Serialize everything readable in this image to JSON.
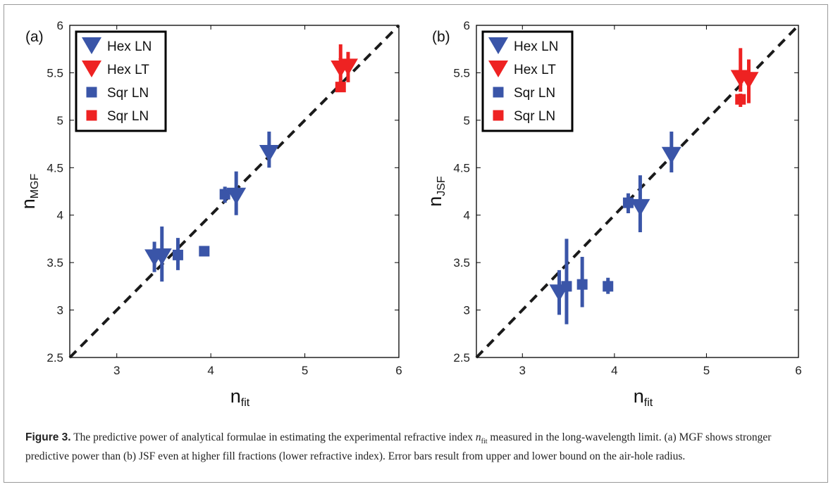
{
  "chart_data": [
    {
      "type": "scatter",
      "panel_label": "(a)",
      "xlabel": "n",
      "xlabel_sub": "fit",
      "ylabel": "n",
      "ylabel_sub": "MGF",
      "xlim": [
        2.5,
        6
      ],
      "ylim": [
        2.5,
        6
      ],
      "xticks": [
        "3",
        "4",
        "5",
        "6"
      ],
      "yticks": [
        "2.5",
        "3",
        "3.5",
        "4",
        "4.5",
        "5",
        "5.5",
        "6"
      ],
      "legend_position": "top-left",
      "reference_line": "y = x (dashed)",
      "series": [
        {
          "name": "Hex LN",
          "color": "#3a55a8",
          "marker": "triangle-down",
          "points": [
            {
              "x": 3.4,
              "y": 3.55,
              "ylo": 3.4,
              "yhi": 3.72
            },
            {
              "x": 3.48,
              "y": 3.56,
              "ylo": 3.3,
              "yhi": 3.88
            },
            {
              "x": 4.27,
              "y": 4.2,
              "ylo": 4.0,
              "yhi": 4.46
            },
            {
              "x": 4.62,
              "y": 4.65,
              "ylo": 4.5,
              "yhi": 4.88
            }
          ]
        },
        {
          "name": "Hex LT",
          "color": "#ee2222",
          "marker": "triangle-down",
          "points": [
            {
              "x": 5.38,
              "y": 5.54,
              "ylo": 5.42,
              "yhi": 5.8
            },
            {
              "x": 5.46,
              "y": 5.56,
              "ylo": 5.4,
              "yhi": 5.72
            }
          ]
        },
        {
          "name": "Sqr LN",
          "color": "#3a55a8",
          "marker": "square",
          "points": [
            {
              "x": 3.65,
              "y": 3.58,
              "ylo": 3.42,
              "yhi": 3.76
            },
            {
              "x": 3.93,
              "y": 3.62,
              "ylo": 3.57,
              "yhi": 3.66
            },
            {
              "x": 4.15,
              "y": 4.22,
              "ylo": 4.13,
              "yhi": 4.3
            }
          ]
        },
        {
          "name": "Sqr LN",
          "color": "#ee2222",
          "marker": "square",
          "points": [
            {
              "x": 5.38,
              "y": 5.35,
              "ylo": 5.3,
              "yhi": 5.42
            }
          ]
        }
      ]
    },
    {
      "type": "scatter",
      "panel_label": "(b)",
      "xlabel": "n",
      "xlabel_sub": "fit",
      "ylabel": "n",
      "ylabel_sub": "JSF",
      "xlim": [
        2.5,
        6
      ],
      "ylim": [
        2.5,
        6
      ],
      "xticks": [
        "3",
        "4",
        "5",
        "6"
      ],
      "yticks": [
        "2.5",
        "3",
        "3.5",
        "4",
        "4.5",
        "5",
        "5.5",
        "6"
      ],
      "legend_position": "top-left",
      "reference_line": "y = x (dashed)",
      "series": [
        {
          "name": "Hex LN",
          "color": "#3a55a8",
          "marker": "triangle-down",
          "points": [
            {
              "x": 3.4,
              "y": 3.18,
              "ylo": 2.95,
              "yhi": 3.42
            },
            {
              "x": 4.28,
              "y": 4.08,
              "ylo": 3.82,
              "yhi": 4.42
            },
            {
              "x": 4.62,
              "y": 4.63,
              "ylo": 4.45,
              "yhi": 4.88
            }
          ]
        },
        {
          "name": "Hex LT",
          "color": "#ee2222",
          "marker": "triangle-down",
          "points": [
            {
              "x": 5.37,
              "y": 5.44,
              "ylo": 5.3,
              "yhi": 5.76
            },
            {
              "x": 5.46,
              "y": 5.42,
              "ylo": 5.18,
              "yhi": 5.64
            }
          ]
        },
        {
          "name": "Sqr LN",
          "color": "#3a55a8",
          "marker": "square",
          "points": [
            {
              "x": 3.48,
              "y": 3.25,
              "ylo": 2.85,
              "yhi": 3.75
            },
            {
              "x": 3.65,
              "y": 3.27,
              "ylo": 3.03,
              "yhi": 3.56
            },
            {
              "x": 3.93,
              "y": 3.25,
              "ylo": 3.17,
              "yhi": 3.34
            },
            {
              "x": 4.15,
              "y": 4.13,
              "ylo": 4.02,
              "yhi": 4.23
            }
          ]
        },
        {
          "name": "Sqr LN",
          "color": "#ee2222",
          "marker": "square",
          "points": [
            {
              "x": 5.37,
              "y": 5.22,
              "ylo": 5.14,
              "yhi": 5.28
            }
          ]
        }
      ]
    }
  ],
  "caption": {
    "label": "Figure 3.",
    "text_before": " The predictive power of analytical formulae in estimating the experimental refractive index ",
    "var": "n",
    "var_sub": "fit",
    "text_after": " measured in the long-wavelength limit. (a) MGF shows stronger predictive power than (b) JSF even at higher fill fractions (lower refractive index). Error bars result from upper and lower bound on the air-hole radius."
  }
}
